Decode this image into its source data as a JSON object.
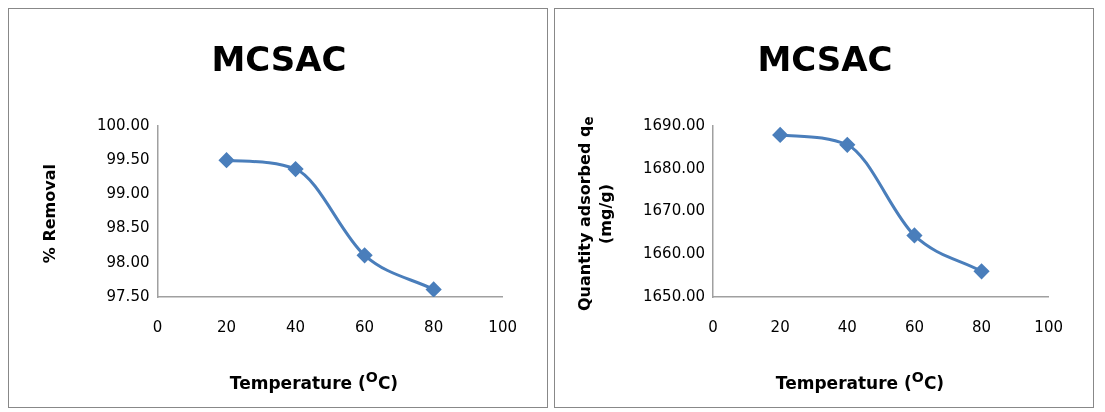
{
  "chart_data": [
    {
      "type": "line",
      "title": "MCSAC",
      "xlabel": "Temperature ($^{O}$C)",
      "ylabel": "% Removal",
      "x": [
        20,
        40,
        60,
        80
      ],
      "series": [
        {
          "color": "#4a7ebb",
          "values": [
            99.5,
            99.37,
            98.11,
            97.61
          ]
        }
      ],
      "xlim": [
        0,
        100
      ],
      "xticks": [
        0,
        20,
        40,
        60,
        80,
        100
      ],
      "ylim": [
        97.5,
        100
      ],
      "yticks": [
        {
          "value": 97.5,
          "label": "97.50"
        },
        {
          "value": 98,
          "label": "98.00"
        },
        {
          "value": 98.5,
          "label": "98.50"
        },
        {
          "value": 99,
          "label": "99.00"
        },
        {
          "value": 99.5,
          "label": "99.50"
        },
        {
          "value": 100,
          "label": "100.00"
        }
      ],
      "grid": false,
      "legend": false,
      "marker": "diamond",
      "line_style": "solid"
    },
    {
      "type": "line",
      "title": "MCSAC",
      "xlabel": "Temperature ($^{O}$C)",
      "ylabel": "Quantity  adsorbed q$_{e}$ (mg/g)",
      "x": [
        20,
        40,
        60,
        80
      ],
      "series": [
        {
          "color": "#4a7ebb",
          "values": [
            1687.9,
            1685.6,
            1664.4,
            1656.0
          ]
        }
      ],
      "xlim": [
        0,
        100
      ],
      "xticks": [
        0,
        20,
        40,
        60,
        80,
        100
      ],
      "ylim": [
        1650,
        1690
      ],
      "yticks": [
        {
          "value": 1650,
          "label": "1650.00"
        },
        {
          "value": 1660,
          "label": "1660.00"
        },
        {
          "value": 1670,
          "label": "1670.00"
        },
        {
          "value": 1680,
          "label": "1680.00"
        },
        {
          "value": 1690,
          "label": "1690.00"
        }
      ],
      "grid": false,
      "legend": false,
      "marker": "diamond",
      "line_style": "solid"
    }
  ]
}
